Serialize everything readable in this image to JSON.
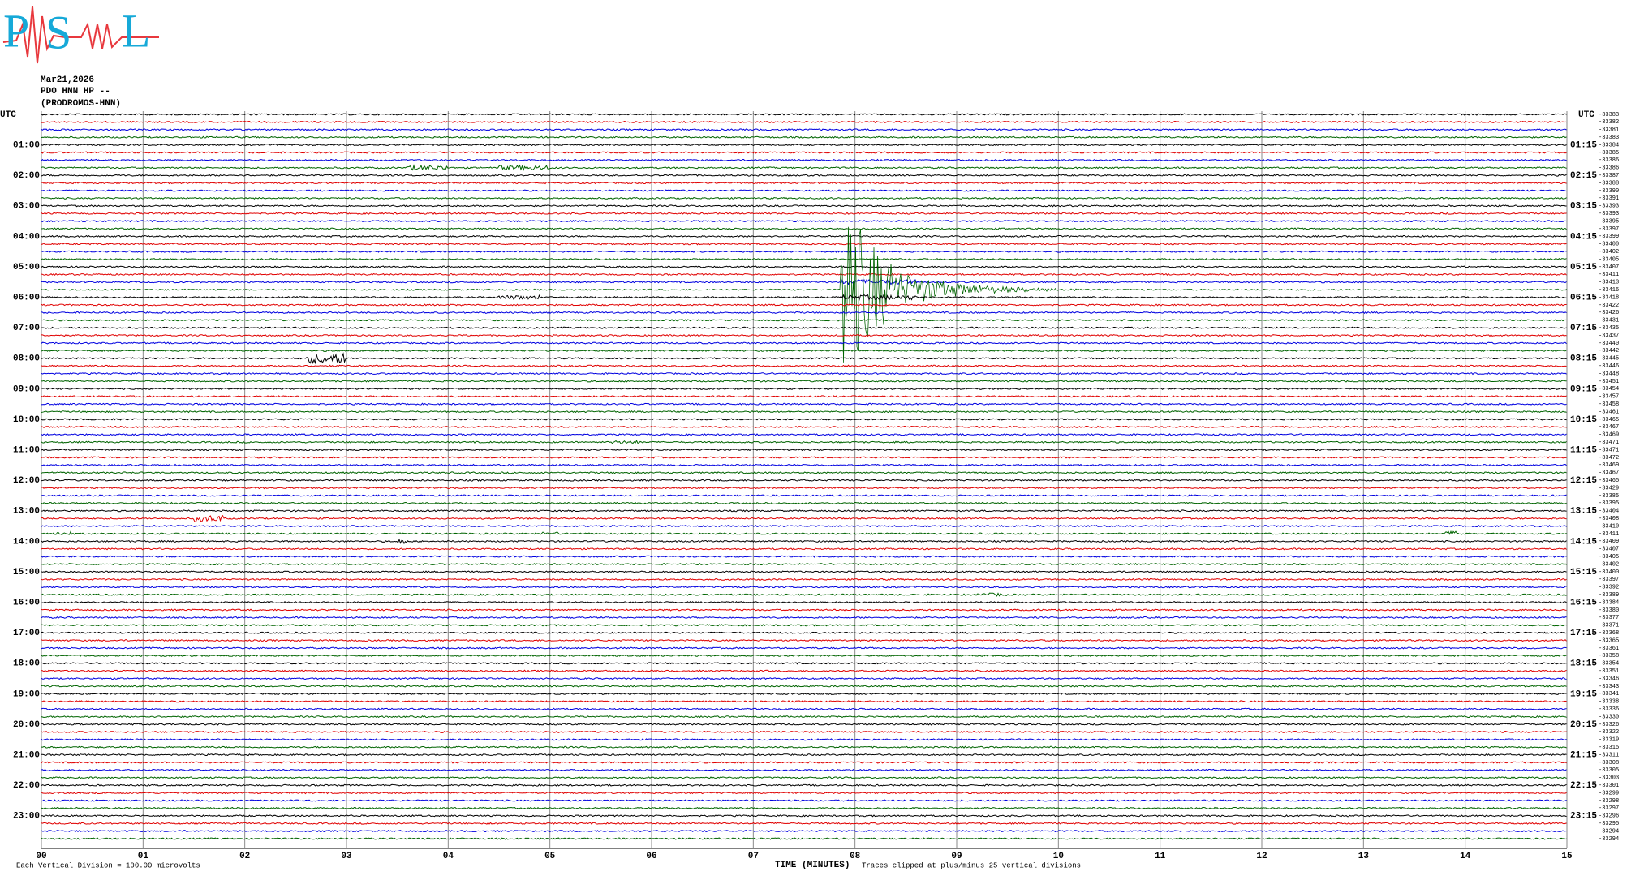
{
  "logo": [
    "P",
    "S",
    "L"
  ],
  "header": {
    "date": "Mar21,2026",
    "channel": "PDO HNN HP --",
    "station": "(PRODROMOS-HNN)"
  },
  "left_labels": [
    "UTC",
    "01:00",
    "02:00",
    "03:00",
    "04:00",
    "05:00",
    "06:00",
    "07:00",
    "08:00",
    "09:00",
    "10:00",
    "11:00",
    "12:00",
    "13:00",
    "14:00",
    "15:00",
    "16:00",
    "17:00",
    "18:00",
    "19:00",
    "20:00",
    "21:00",
    "22:00",
    "23:00"
  ],
  "right_labels": [
    "UTC",
    "01:15",
    "02:15",
    "03:15",
    "04:15",
    "05:15",
    "06:15",
    "07:15",
    "08:15",
    "09:15",
    "10:15",
    "11:15",
    "12:15",
    "13:15",
    "14:15",
    "15:15",
    "16:15",
    "17:15",
    "18:15",
    "19:15",
    "20:15",
    "21:15",
    "22:15",
    "23:15"
  ],
  "trace_offsets": [
    -33383,
    -33382,
    -33381,
    -33383,
    -33384,
    -33385,
    -33386,
    -33386,
    -33387,
    -33388,
    -33390,
    -33391,
    -33393,
    -33393,
    -33395,
    -33397,
    -33399,
    -33400,
    -33402,
    -33405,
    -33407,
    -33411,
    -33413,
    -33416,
    -33418,
    -33422,
    -33426,
    -33431,
    -33435,
    -33437,
    -33440,
    -33442,
    -33445,
    -33446,
    -33448,
    -33451,
    -33454,
    -33457,
    -33458,
    -33461,
    -33465,
    -33467,
    -33469,
    -33471,
    -33471,
    -33472,
    -33469,
    -33467,
    -33465,
    -33429,
    -33385,
    -33395,
    -33404,
    -33408,
    -33410,
    -33411,
    -33409,
    -33407,
    -33405,
    -33402,
    -33400,
    -33397,
    -33392,
    -33389,
    -33384,
    -33380,
    -33377,
    -33371,
    -33368,
    -33365,
    -33361,
    -33358,
    -33354,
    -33351,
    -33346,
    -33343,
    -33341,
    -33338,
    -33336,
    -33330,
    -33326,
    -33322,
    -33319,
    -33315,
    -33311,
    -33308,
    -33305,
    -33303,
    -33301,
    -33299,
    -33298,
    -33297,
    -33296,
    -33295,
    -33294,
    -33294
  ],
  "x_ticks": [
    "00",
    "01",
    "02",
    "03",
    "04",
    "05",
    "06",
    "07",
    "08",
    "09",
    "10",
    "11",
    "12",
    "13",
    "14",
    "15"
  ],
  "footer": {
    "scale_note": "Each Vertical Division =  100.00 microvolts",
    "x_title": "TIME (MINUTES)",
    "clip_note": "Traces clipped at plus/minus 25 vertical divisions"
  }
}
